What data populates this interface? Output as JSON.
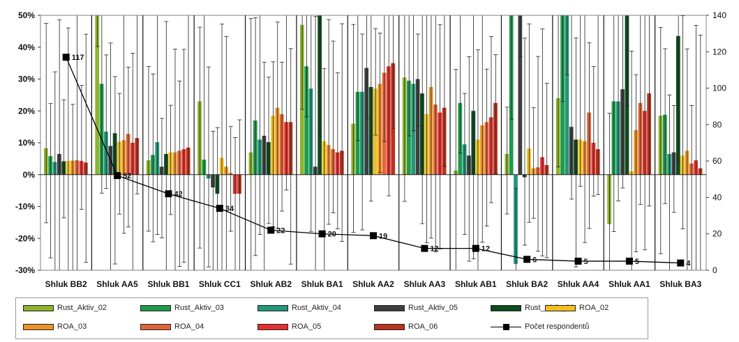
{
  "chart_data": {
    "type": "bar",
    "title": "",
    "xlabel": "",
    "ylabel": "",
    "y_left_ticks": [
      "50%",
      "40%",
      "30%",
      "20%",
      "10%",
      "0%",
      "-10%",
      "-20%",
      "-30%"
    ],
    "y_right_ticks": [
      "140",
      "120",
      "100",
      "80",
      "60",
      "40",
      "20",
      "0"
    ],
    "ylim": [
      -30,
      50
    ],
    "y2lim": [
      0,
      140
    ],
    "grid": false,
    "legend_placement": "bottom",
    "categories": [
      "Shluk BB2",
      "Shluk AA5",
      "Shluk BB1",
      "Shluk CC1",
      "Shluk AB2",
      "Shluk BA1",
      "Shluk AA2",
      "Shluk AA3",
      "Shluk AB1",
      "Shluk BA2",
      "Shluk AA4",
      "Shluk AA1",
      "Shluk BA3"
    ],
    "series": [
      {
        "name": "Rust_Aktiv_02",
        "color": "#8db32f",
        "values": [
          8.3,
          55,
          4.5,
          23,
          7,
          47,
          16,
          30.5,
          1.3,
          6.5,
          24,
          -15.5,
          18.5
        ]
      },
      {
        "name": "Rust_Aktiv_03",
        "color": "#1f9a4a",
        "values": [
          5.8,
          28.5,
          6.2,
          4.7,
          17,
          34,
          26,
          29.5,
          22.5,
          55,
          55,
          23,
          18.8
        ]
      },
      {
        "name": "Rust_Aktiv_04",
        "color": "#23977a",
        "values": [
          4,
          13.5,
          10.2,
          -1.2,
          11,
          27,
          26,
          28.5,
          9.5,
          -28,
          55,
          23,
          6.5
        ]
      },
      {
        "name": "Rust_Aktiv_05",
        "color": "#3f3f3f",
        "values": [
          6.5,
          9,
          2.5,
          -4,
          12.2,
          2.5,
          33.5,
          30,
          6,
          55,
          15,
          26.8,
          7
        ]
      },
      {
        "name": "Rust_Aktiv_06",
        "color": "#0e4a1e",
        "values": [
          4.2,
          13,
          6.5,
          -6,
          10.2,
          55,
          27.5,
          25.5,
          20,
          -0.8,
          11,
          55,
          43.5
        ]
      },
      {
        "name": "ROA_02",
        "color": "#f2bf1e",
        "values": [
          4.3,
          10.3,
          7,
          5.3,
          18.5,
          10.5,
          27,
          19,
          11,
          8.2,
          11,
          1,
          6
        ]
      },
      {
        "name": "ROA_03",
        "color": "#eb9426",
        "values": [
          4.4,
          10.8,
          7,
          2.5,
          21,
          9.3,
          28.5,
          27.5,
          15.5,
          2,
          10.5,
          14,
          7.5
        ]
      },
      {
        "name": "ROA_04",
        "color": "#e0663a",
        "values": [
          4.5,
          12.8,
          7.5,
          0.5,
          19,
          8,
          32,
          22,
          16.5,
          2.3,
          19.5,
          22.5,
          3.5
        ]
      },
      {
        "name": "ROA_05",
        "color": "#e33131",
        "values": [
          4.3,
          10,
          8,
          -6,
          16.5,
          7,
          34,
          19.5,
          18,
          5.5,
          10,
          20,
          4.5
        ]
      },
      {
        "name": "ROA_06",
        "color": "#b8341f",
        "values": [
          3.8,
          11.5,
          8.5,
          -6,
          16.5,
          7.5,
          35,
          21,
          22.5,
          3,
          8,
          25.5,
          2
        ]
      }
    ],
    "line_series": {
      "name": "Počet respondentů",
      "axis": "right",
      "values": [
        117,
        52,
        42,
        34,
        22,
        20,
        19,
        12,
        12,
        6,
        5,
        5,
        4
      ]
    }
  },
  "legend": [
    {
      "label": "Rust_Aktiv_02",
      "color": "#8db32f",
      "kind": "bar"
    },
    {
      "label": "Rust_Aktiv_03",
      "color": "#1f9a4a",
      "kind": "bar"
    },
    {
      "label": "Rust_Aktiv_04",
      "color": "#23977a",
      "kind": "bar"
    },
    {
      "label": "Rust_Aktiv_05",
      "color": "#3f3f3f",
      "kind": "bar"
    },
    {
      "label": "Rust_Aktiv_06",
      "color": "#0e4a1e",
      "kind": "bar"
    },
    {
      "label": "ROA_02",
      "color": "#f2bf1e",
      "kind": "bar"
    },
    {
      "label": "ROA_03",
      "color": "#eb9426",
      "kind": "bar"
    },
    {
      "label": "ROA_04",
      "color": "#e0663a",
      "kind": "bar"
    },
    {
      "label": "ROA_05",
      "color": "#e33131",
      "kind": "bar"
    },
    {
      "label": "ROA_06",
      "color": "#b8341f",
      "kind": "bar"
    },
    {
      "label": "Počet respondentů",
      "color": "#000000",
      "kind": "line"
    }
  ]
}
